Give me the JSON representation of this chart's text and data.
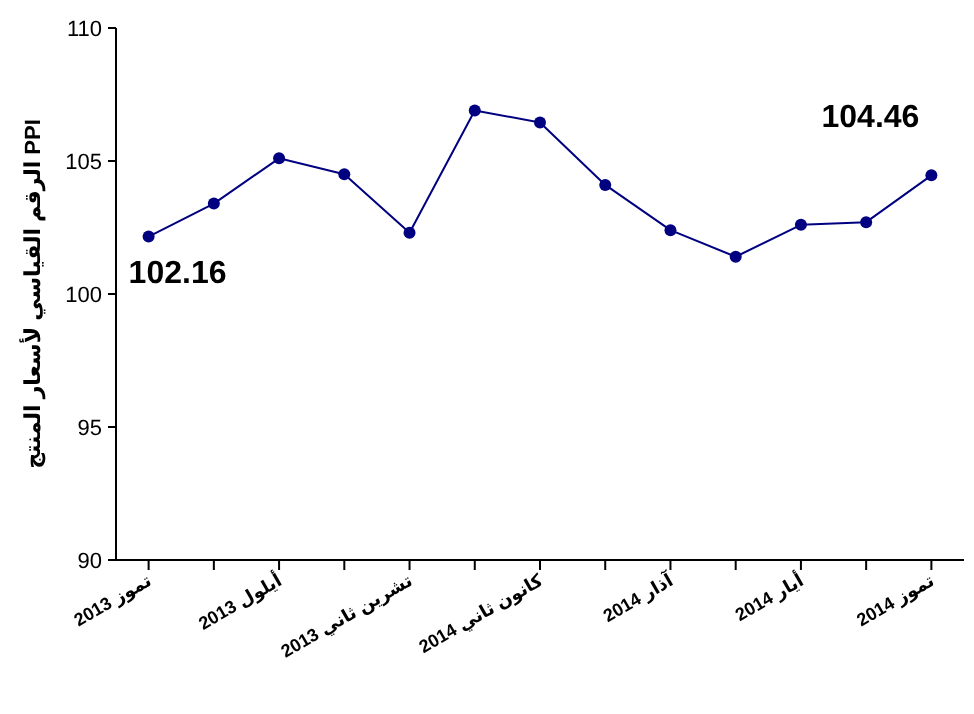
{
  "chart_data": {
    "type": "line",
    "ylabel": "الرقم القياسي لأسعار المنتج PPI",
    "categories": [
      "تموز 2013",
      null,
      "أيلول 2013",
      null,
      "تشرين ثاني 2013",
      null,
      "كانون ثاني 2014",
      null,
      "آذار 2014",
      null,
      "أيار 2014",
      null,
      "تموز 2014"
    ],
    "series": [
      {
        "color": "#000080",
        "values": [
          102.16,
          103.4,
          105.1,
          104.5,
          102.3,
          106.9,
          106.45,
          104.1,
          102.4,
          101.4,
          102.6,
          102.7,
          104.46
        ],
        "value_labels": [
          "102.16",
          null,
          null,
          null,
          null,
          null,
          null,
          null,
          null,
          null,
          null,
          null,
          "104.46"
        ]
      }
    ],
    "ylim": [
      90,
      110
    ],
    "yticks": [
      90,
      95,
      100,
      105,
      110
    ],
    "marker": "circle",
    "line_style": "solid"
  }
}
